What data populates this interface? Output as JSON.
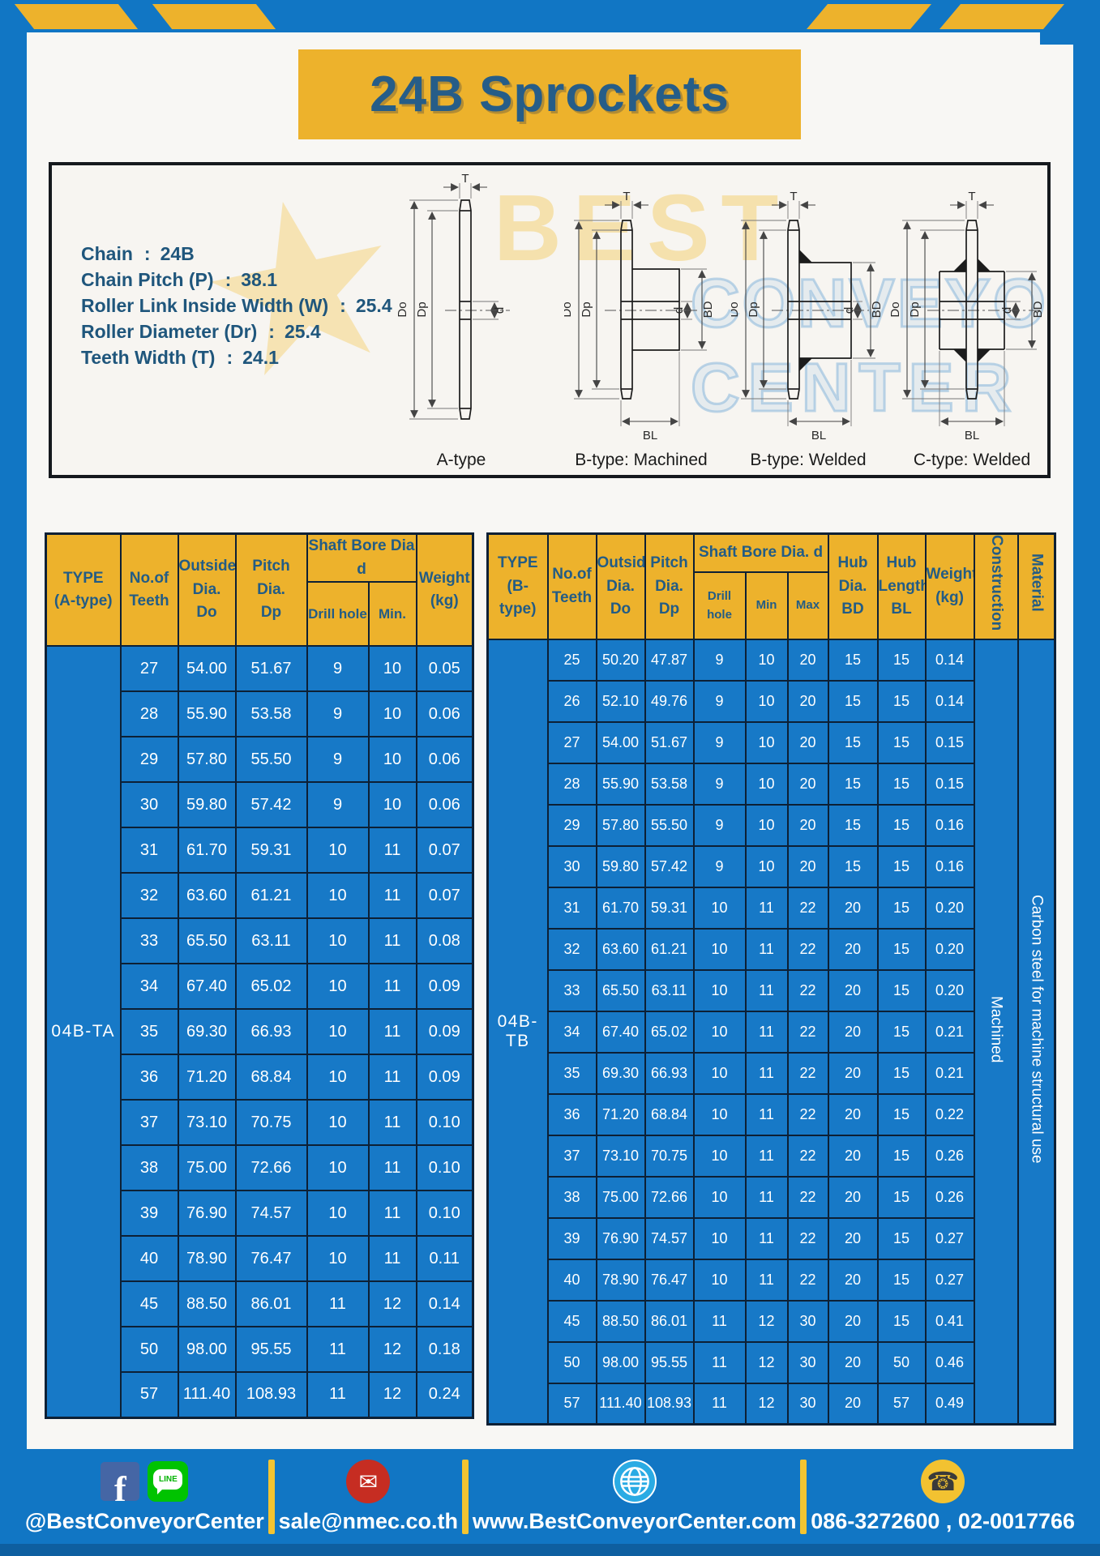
{
  "header": {
    "title": "24B Sprockets"
  },
  "diagram": {
    "spec_separator": ":",
    "specs": [
      {
        "label": "Chain",
        "value": "24B"
      },
      {
        "label": "Chain Pitch (P)",
        "value": "38.1"
      },
      {
        "label": "Roller Link Inside Width (W)",
        "value": "25.4"
      },
      {
        "label": "Roller Diameter (Dr)",
        "value": "25.4"
      },
      {
        "label": "Teeth Width (T)",
        "value": "24.1"
      }
    ],
    "captions": [
      "A-type",
      "B-type: Machined",
      "B-type: Welded",
      "C-type: Welded"
    ],
    "dims": {
      "do": "Do",
      "dp": "Dp",
      "t": "T",
      "d": "d",
      "bd": "BD",
      "bl": "BL"
    },
    "watermark": {
      "star": "★",
      "line1": "BEST",
      "line2": "CONVEYOR",
      "line3": "CENTER"
    }
  },
  "table_a": {
    "headers": {
      "type": "TYPE\n(A-type)",
      "teeth": "No.of\nTeeth",
      "outside": "Outside\nDia.\nDo",
      "pitch": "Pitch Dia.\nDp",
      "shaft_group": "Shaft Bore Dia d",
      "drill": "Drill hole",
      "min": "Min.",
      "weight": "Weight\n(kg)"
    },
    "type_label": "04B-TA",
    "rows": [
      [
        "27",
        "54.00",
        "51.67",
        "9",
        "10",
        "0.05"
      ],
      [
        "28",
        "55.90",
        "53.58",
        "9",
        "10",
        "0.06"
      ],
      [
        "29",
        "57.80",
        "55.50",
        "9",
        "10",
        "0.06"
      ],
      [
        "30",
        "59.80",
        "57.42",
        "9",
        "10",
        "0.06"
      ],
      [
        "31",
        "61.70",
        "59.31",
        "10",
        "11",
        "0.07"
      ],
      [
        "32",
        "63.60",
        "61.21",
        "10",
        "11",
        "0.07"
      ],
      [
        "33",
        "65.50",
        "63.11",
        "10",
        "11",
        "0.08"
      ],
      [
        "34",
        "67.40",
        "65.02",
        "10",
        "11",
        "0.09"
      ],
      [
        "35",
        "69.30",
        "66.93",
        "10",
        "11",
        "0.09"
      ],
      [
        "36",
        "71.20",
        "68.84",
        "10",
        "11",
        "0.09"
      ],
      [
        "37",
        "73.10",
        "70.75",
        "10",
        "11",
        "0.10"
      ],
      [
        "38",
        "75.00",
        "72.66",
        "10",
        "11",
        "0.10"
      ],
      [
        "39",
        "76.90",
        "74.57",
        "10",
        "11",
        "0.10"
      ],
      [
        "40",
        "78.90",
        "76.47",
        "10",
        "11",
        "0.11"
      ],
      [
        "45",
        "88.50",
        "86.01",
        "11",
        "12",
        "0.14"
      ],
      [
        "50",
        "98.00",
        "95.55",
        "11",
        "12",
        "0.18"
      ],
      [
        "57",
        "111.40",
        "108.93",
        "11",
        "12",
        "0.24"
      ]
    ]
  },
  "table_b": {
    "headers": {
      "type": "TYPE\n(B-type)",
      "teeth": "No.of\nTeeth",
      "outside": "Outside\nDia.\nDo",
      "pitch": "Pitch\nDia.\nDp",
      "shaft_group": "Shaft Bore Dia. d",
      "drill": "Drill hole",
      "min": "Min",
      "max": "Max",
      "hub_dia": "Hub\nDia.\nBD",
      "hub_len": "Hub\nLength\nBL",
      "weight": "Weight\n(kg)",
      "construction": "Construction",
      "material": "Material"
    },
    "type_label": "04B-TB",
    "construction": "Machined",
    "material": "Carbon steel for machine structural use",
    "rows": [
      [
        "25",
        "50.20",
        "47.87",
        "9",
        "10",
        "20",
        "15",
        "15",
        "0.14"
      ],
      [
        "26",
        "52.10",
        "49.76",
        "9",
        "10",
        "20",
        "15",
        "15",
        "0.14"
      ],
      [
        "27",
        "54.00",
        "51.67",
        "9",
        "10",
        "20",
        "15",
        "15",
        "0.15"
      ],
      [
        "28",
        "55.90",
        "53.58",
        "9",
        "10",
        "20",
        "15",
        "15",
        "0.15"
      ],
      [
        "29",
        "57.80",
        "55.50",
        "9",
        "10",
        "20",
        "15",
        "15",
        "0.16"
      ],
      [
        "30",
        "59.80",
        "57.42",
        "9",
        "10",
        "20",
        "15",
        "15",
        "0.16"
      ],
      [
        "31",
        "61.70",
        "59.31",
        "10",
        "11",
        "22",
        "20",
        "15",
        "0.20"
      ],
      [
        "32",
        "63.60",
        "61.21",
        "10",
        "11",
        "22",
        "20",
        "15",
        "0.20"
      ],
      [
        "33",
        "65.50",
        "63.11",
        "10",
        "11",
        "22",
        "20",
        "15",
        "0.20"
      ],
      [
        "34",
        "67.40",
        "65.02",
        "10",
        "11",
        "22",
        "20",
        "15",
        "0.21"
      ],
      [
        "35",
        "69.30",
        "66.93",
        "10",
        "11",
        "22",
        "20",
        "15",
        "0.21"
      ],
      [
        "36",
        "71.20",
        "68.84",
        "10",
        "11",
        "22",
        "20",
        "15",
        "0.22"
      ],
      [
        "37",
        "73.10",
        "70.75",
        "10",
        "11",
        "22",
        "20",
        "15",
        "0.26"
      ],
      [
        "38",
        "75.00",
        "72.66",
        "10",
        "11",
        "22",
        "20",
        "15",
        "0.26"
      ],
      [
        "39",
        "76.90",
        "74.57",
        "10",
        "11",
        "22",
        "20",
        "15",
        "0.27"
      ],
      [
        "40",
        "78.90",
        "76.47",
        "10",
        "11",
        "22",
        "20",
        "15",
        "0.27"
      ],
      [
        "45",
        "88.50",
        "86.01",
        "11",
        "12",
        "30",
        "20",
        "15",
        "0.41"
      ],
      [
        "50",
        "98.00",
        "95.55",
        "11",
        "12",
        "30",
        "20",
        "50",
        "0.46"
      ],
      [
        "57",
        "111.40",
        "108.93",
        "11",
        "12",
        "30",
        "20",
        "57",
        "0.49"
      ]
    ]
  },
  "footer": {
    "facebook_glyph": "f",
    "line_glyph": "LINE",
    "email_glyph": "✉",
    "phone_glyph": "☎",
    "items": [
      {
        "icon": "facebook-line",
        "text": "@BestConveyorCenter"
      },
      {
        "icon": "email",
        "text": "sale@nmec.co.th"
      },
      {
        "icon": "globe",
        "text": "www.BestConveyorCenter.com"
      },
      {
        "icon": "phone",
        "text": "086-3272600 , 02-0017766"
      }
    ]
  },
  "colors": {
    "frame_blue": "#1176c4",
    "gold": "#edb22c",
    "cell_blue": "#1779c7",
    "border_navy": "#0d2035",
    "dark_text": "#235c85",
    "footer_strip": "#0e5fa0"
  }
}
